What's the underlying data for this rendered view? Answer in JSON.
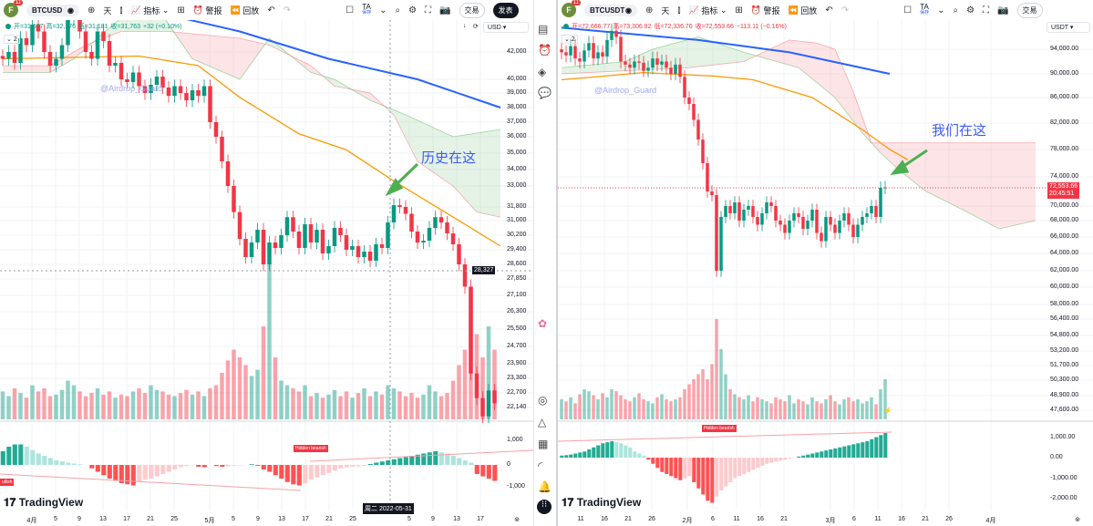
{
  "left": {
    "toolbar": {
      "avatar": "F",
      "badge": "11",
      "symbol": "BTCUSD",
      "interval": "天",
      "indicators": "指标",
      "alert": "警报",
      "replay": "回放",
      "ta": "TA",
      "ta_sub": "保存",
      "trade": "交易",
      "publish": "发表"
    },
    "legend": {
      "o": "开=31,677",
      "h": "高=32,376",
      "l": "低=31,181",
      "c": "收=31,763",
      "chg": "+32 (+0.10%)",
      "sub": "2"
    },
    "currency": "USD",
    "price_ticks": [
      "42,000",
      "40,000",
      "39,000",
      "38,000",
      "37,000",
      "36,000",
      "35,000",
      "34,000",
      "33,000",
      "31,800",
      "31,000",
      "30,200",
      "29,400",
      "28,600",
      "27,850",
      "27,100",
      "26,300",
      "25,500",
      "24,700",
      "23,900",
      "23,300",
      "22,700",
      "22,140"
    ],
    "macd_ticks": [
      "1,000",
      "0",
      "-1,000"
    ],
    "time_ticks": [
      "4月",
      "5",
      "9",
      "13",
      "17",
      "21",
      "25",
      "5月",
      "5",
      "9",
      "13",
      "17",
      "21",
      "25",
      "5",
      "9",
      "13",
      "17"
    ],
    "crosshair_price": "28,327",
    "crosshair_date": "周二 2022-05-31",
    "annotation": "历史在这",
    "watermark": "@Airdrop_Guard",
    "labels": {
      "hidden_bearish": "Hidden bearish",
      "bullish": "ullish"
    },
    "closes": [
      41500,
      42000,
      41200,
      43000,
      42500,
      44000,
      43500,
      42000,
      41000,
      41500,
      42500,
      44500,
      45000,
      43500,
      42000,
      41500,
      43500,
      42800,
      41000,
      41200,
      40000,
      39800,
      40500,
      39500,
      39000,
      39600,
      40200,
      39400,
      38800,
      39500,
      39000,
      38500,
      39200,
      38800,
      39500,
      37000,
      36000,
      34500,
      33000,
      31500,
      30000,
      29000,
      29800,
      30500,
      28600,
      29800,
      29500,
      30200,
      31200,
      30400,
      29500,
      30800,
      29800,
      30500,
      29200,
      29600,
      30600,
      30200,
      29400,
      29600,
      29000,
      29300,
      28800,
      29700,
      29500,
      30900,
      31900,
      31800,
      31400,
      30400,
      29800,
      29900,
      30600,
      31200,
      30900,
      30300,
      29700,
      28600,
      27500,
      23500,
      22500,
      21800,
      22800,
      22300
    ],
    "volume": [
      18,
      15,
      20,
      17,
      14,
      22,
      18,
      20,
      15,
      16,
      19,
      25,
      22,
      18,
      15,
      17,
      20,
      16,
      18,
      14,
      16,
      15,
      18,
      20,
      17,
      22,
      19,
      18,
      16,
      15,
      17,
      19,
      16,
      18,
      15,
      20,
      22,
      30,
      38,
      45,
      40,
      35,
      28,
      32,
      60,
      100,
      40,
      25,
      22,
      20,
      18,
      22,
      15,
      17,
      14,
      16,
      19,
      15,
      18,
      14,
      17,
      20,
      15,
      18,
      16,
      22,
      20,
      18,
      15,
      17,
      14,
      16,
      22,
      18,
      15,
      17,
      25,
      35,
      45,
      85,
      55,
      40,
      60,
      45
    ],
    "macd": [
      600,
      800,
      900,
      900,
      800,
      650,
      500,
      400,
      300,
      200,
      150,
      100,
      60,
      30,
      0,
      -150,
      -300,
      -450,
      -600,
      -700,
      -800,
      -850,
      -900,
      -750,
      -650,
      -600,
      -500,
      -400,
      -300,
      -200,
      -100,
      -50,
      -20,
      -80,
      -100,
      0,
      -50,
      -80,
      -60,
      -30,
      -20,
      0,
      30,
      -40,
      -200,
      -300,
      -450,
      -600,
      -750,
      -850,
      -900,
      -800,
      -650,
      -550,
      -450,
      -350,
      -250,
      -150,
      -100,
      -80,
      -60,
      -40,
      40,
      100,
      150,
      200,
      250,
      300,
      350,
      400,
      450,
      500,
      550,
      600,
      550,
      500,
      400,
      300,
      200,
      100,
      -400,
      -500,
      -600,
      -700
    ],
    "ma_slow": [
      [
        0,
        47500
      ],
      [
        20,
        45500
      ],
      [
        40,
        43500
      ],
      [
        55,
        41500
      ],
      [
        70,
        40000
      ],
      [
        84,
        38000
      ]
    ],
    "ma_fast": [
      [
        0,
        41500
      ],
      [
        23,
        41700
      ],
      [
        33,
        41000
      ],
      [
        40,
        38700
      ],
      [
        50,
        36200
      ],
      [
        58,
        35200
      ],
      [
        66,
        33300
      ],
      [
        78,
        30800
      ],
      [
        84,
        29600
      ]
    ],
    "span_a": [
      [
        0,
        40500
      ],
      [
        8,
        40500
      ],
      [
        12,
        41500
      ],
      [
        20,
        44500
      ],
      [
        26,
        45500
      ],
      [
        28,
        44000
      ],
      [
        32,
        41500
      ],
      [
        40,
        40000
      ],
      [
        45,
        43000
      ],
      [
        52,
        40500
      ],
      [
        56,
        40000
      ],
      [
        62,
        38500
      ],
      [
        68,
        37500
      ],
      [
        76,
        36000
      ],
      [
        84,
        36500
      ]
    ],
    "span_b": [
      [
        0,
        41000
      ],
      [
        8,
        41000
      ],
      [
        14,
        42500
      ],
      [
        20,
        43500
      ],
      [
        28,
        43500
      ],
      [
        40,
        43000
      ],
      [
        45,
        42500
      ],
      [
        52,
        41000
      ],
      [
        56,
        39500
      ],
      [
        62,
        39000
      ],
      [
        66,
        37500
      ],
      [
        70,
        34500
      ],
      [
        76,
        33000
      ],
      [
        80,
        31500
      ],
      [
        84,
        31200
      ]
    ]
  },
  "right": {
    "toolbar": {
      "avatar": "F",
      "badge": "11",
      "symbol": "BTCUSDT",
      "interval": "天",
      "indicators": "指标",
      "alert": "警报",
      "replay": "回放",
      "ta": "TA",
      "ta_sub": "保存",
      "trade": "交易"
    },
    "legend": {
      "o": "开=72,666.77",
      "h": "高=73,306.82",
      "l": "低=72,336.76",
      "c": "收=72,553.66",
      "chg": "−113.11 (−0.16%)",
      "sub": "2"
    },
    "currency": "USDT",
    "price_ticks": [
      "94,000.00",
      "90,000.00",
      "86,000.00",
      "82,000.00",
      "78,000.00",
      "74,000.00",
      "70,000.00",
      "68,000.00",
      "66,000.00",
      "64,000.00",
      "62,000.00",
      "60,000.00",
      "58,000.00",
      "56,400.00",
      "54,800.00",
      "53,200.00",
      "51,700.00",
      "50,300.00",
      "48,900.00",
      "47,600.00"
    ],
    "macd_ticks": [
      "1,000.00",
      "0.00",
      "-1,000.00",
      "-2,000.00"
    ],
    "time_ticks": [
      "11",
      "16",
      "21",
      "26",
      "2月",
      "6",
      "11",
      "16",
      "21",
      "3月",
      "6",
      "11",
      "16",
      "21",
      "26",
      "4月"
    ],
    "last_price": "72,553.66",
    "countdown": "20:45:51",
    "annotation": "我们在这",
    "watermark": "@Airdrop_Guard",
    "labels": {
      "hidden_bearish": "Hidden bearish"
    },
    "closes": [
      93500,
      93000,
      94500,
      92500,
      92000,
      93800,
      95000,
      92500,
      93500,
      92800,
      95500,
      97000,
      96000,
      92000,
      91500,
      91000,
      92000,
      91800,
      90500,
      91000,
      92500,
      91500,
      92000,
      91000,
      90000,
      91500,
      89500,
      86000,
      85000,
      82500,
      79500,
      76000,
      72000,
      71500,
      62000,
      68500,
      70000,
      69000,
      70500,
      68000,
      69500,
      70000,
      68500,
      67500,
      69000,
      70500,
      70000,
      68000,
      67500,
      66500,
      68000,
      69000,
      68500,
      67000,
      68000,
      69500,
      66500,
      65500,
      68500,
      67500,
      66500,
      68000,
      69000,
      67500,
      66000,
      67500,
      68500,
      69000,
      70000,
      68500,
      72500,
      72553
    ],
    "volume": [
      20,
      18,
      22,
      16,
      25,
      30,
      28,
      24,
      20,
      26,
      22,
      30,
      28,
      24,
      20,
      18,
      22,
      26,
      20,
      18,
      16,
      22,
      25,
      20,
      18,
      20,
      22,
      30,
      35,
      40,
      45,
      50,
      40,
      55,
      100,
      70,
      45,
      30,
      25,
      22,
      20,
      24,
      18,
      22,
      20,
      18,
      16,
      22,
      20,
      18,
      24,
      16,
      20,
      18,
      15,
      22,
      18,
      16,
      20,
      24,
      18,
      15,
      20,
      22,
      18,
      20,
      16,
      18,
      22,
      15,
      30,
      40
    ],
    "macd": [
      100,
      120,
      150,
      200,
      250,
      300,
      400,
      500,
      600,
      700,
      750,
      800,
      750,
      700,
      600,
      500,
      300,
      200,
      100,
      -100,
      -300,
      -500,
      -700,
      -800,
      -900,
      -1000,
      -1100,
      -1000,
      -900,
      -1200,
      -1500,
      -1800,
      -2100,
      -2200,
      -1900,
      -1600,
      -1400,
      -1200,
      -1000,
      -900,
      -800,
      -700,
      -600,
      -500,
      -400,
      -300,
      -250,
      -200,
      -150,
      -100,
      -50,
      -20,
      50,
      100,
      150,
      200,
      250,
      300,
      350,
      400,
      450,
      500,
      550,
      600,
      650,
      700,
      750,
      800,
      900,
      1000,
      1100,
      1200
    ],
    "ma_slow": [
      [
        0,
        97500
      ],
      [
        30,
        95500
      ],
      [
        50,
        93500
      ],
      [
        72,
        90000
      ]
    ],
    "ma_fast": [
      [
        0,
        89000
      ],
      [
        18,
        90200
      ],
      [
        34,
        89600
      ],
      [
        42,
        89000
      ],
      [
        55,
        86000
      ],
      [
        66,
        81000
      ],
      [
        72,
        78000
      ],
      [
        76,
        76500
      ]
    ],
    "span_a": [
      [
        0,
        91000
      ],
      [
        14,
        92000
      ],
      [
        20,
        94000
      ],
      [
        30,
        96000
      ],
      [
        40,
        93500
      ],
      [
        52,
        91000
      ],
      [
        60,
        86000
      ],
      [
        66,
        80500
      ],
      [
        70,
        77500
      ],
      [
        74,
        75000
      ],
      [
        80,
        72000
      ],
      [
        88,
        69500
      ],
      [
        96,
        67000
      ],
      [
        104,
        68000
      ]
    ],
    "span_b": [
      [
        0,
        90000
      ],
      [
        14,
        90500
      ],
      [
        28,
        91000
      ],
      [
        40,
        92000
      ],
      [
        50,
        95500
      ],
      [
        56,
        95000
      ],
      [
        60,
        94000
      ],
      [
        64,
        87000
      ],
      [
        68,
        79000
      ],
      [
        80,
        79000
      ],
      [
        104,
        79000
      ]
    ]
  },
  "brand": "TradingView",
  "colors": {
    "up": "#089981",
    "down": "#f23645",
    "ma_slow": "#2962ff",
    "ma_fast": "#ff9800",
    "note": "#3d5afe",
    "arrow": "#4caf50"
  }
}
